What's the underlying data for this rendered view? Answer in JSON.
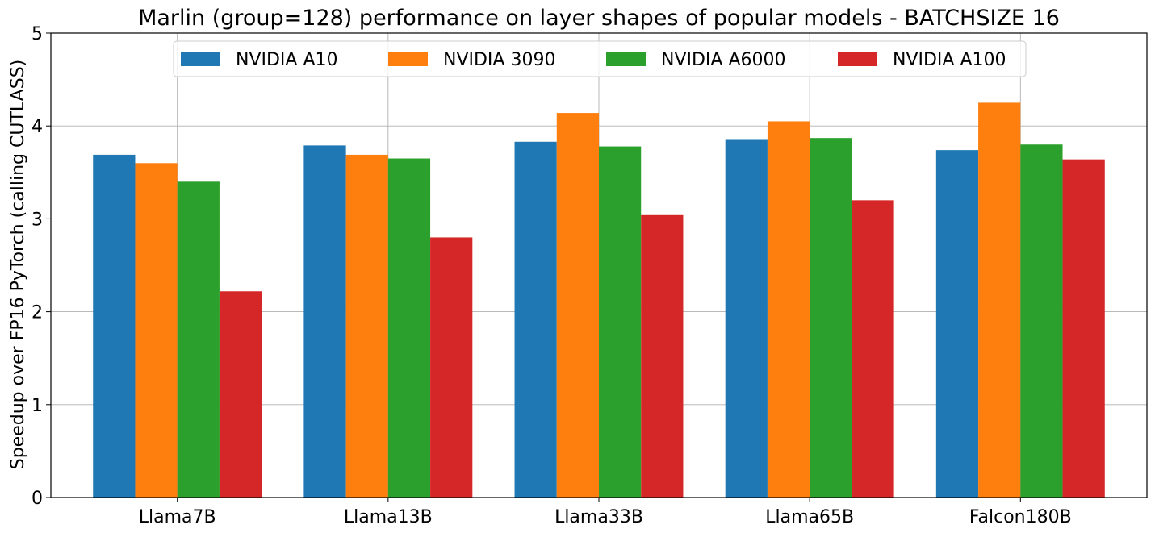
{
  "chart_data": {
    "type": "bar",
    "title": "Marlin (group=128) performance on layer shapes of popular models - BATCHSIZE 16",
    "xlabel": "",
    "ylabel": "Speedup over FP16 PyTorch (calling CUTLASS)",
    "ylim": [
      0,
      5
    ],
    "yticks": [
      "0",
      "1",
      "2",
      "3",
      "4",
      "5"
    ],
    "grid": true,
    "legend_position": "upper center",
    "categories": [
      "Llama7B",
      "Llama13B",
      "Llama33B",
      "Llama65B",
      "Falcon180B"
    ],
    "series": [
      {
        "name": "NVIDIA A10",
        "color": "#1f77b4",
        "values": [
          3.69,
          3.79,
          3.83,
          3.85,
          3.74
        ]
      },
      {
        "name": "NVIDIA 3090",
        "color": "#ff7f0e",
        "values": [
          3.6,
          3.69,
          4.14,
          4.05,
          4.25
        ]
      },
      {
        "name": "NVIDIA A6000",
        "color": "#2ca02c",
        "values": [
          3.4,
          3.65,
          3.78,
          3.87,
          3.8
        ]
      },
      {
        "name": "NVIDIA A100",
        "color": "#d62728",
        "values": [
          2.22,
          2.8,
          3.04,
          3.2,
          3.64
        ]
      }
    ]
  }
}
